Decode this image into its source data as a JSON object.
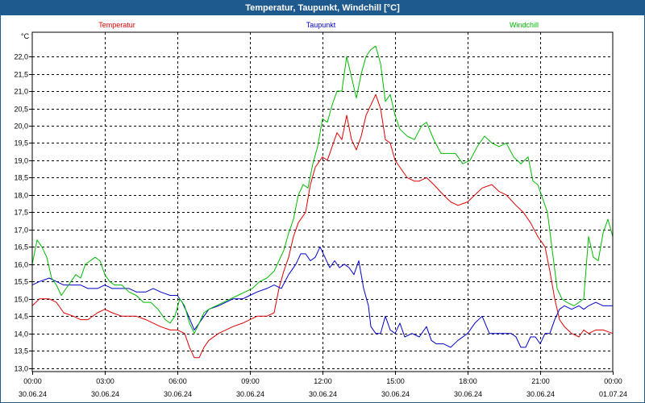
{
  "window": {
    "title": "Temperatur, Taupunkt, Windchill [°C]"
  },
  "chart_data": {
    "type": "line",
    "title": "Temperatur, Taupunkt, Windchill [°C]",
    "ylabel": "°C",
    "xlabel": "",
    "ylim": [
      12.9,
      22.7
    ],
    "yticks": [
      13.0,
      13.5,
      14.0,
      14.5,
      15.0,
      15.5,
      16.0,
      16.5,
      17.0,
      17.5,
      18.0,
      18.5,
      19.0,
      19.5,
      20.0,
      20.5,
      21.0,
      21.5,
      22.0
    ],
    "ytick_labels": [
      "13,0",
      "13,5",
      "14,0",
      "14,5",
      "15,0",
      "15,5",
      "16,0",
      "16,5",
      "17,0",
      "17,5",
      "18,0",
      "18,5",
      "19,0",
      "19,5",
      "20,0",
      "20,5",
      "21,0",
      "21,5",
      "22,0"
    ],
    "xlim": [
      0,
      24
    ],
    "xticks": [
      0,
      3,
      6,
      9,
      12,
      15,
      18,
      21,
      24
    ],
    "xtick_time_labels": [
      "00:00",
      "03:00",
      "06:00",
      "09:00",
      "12:00",
      "15:00",
      "18:00",
      "21:00",
      "00:00"
    ],
    "xtick_date_labels": [
      "30.06.24",
      "30.06.24",
      "30.06.24",
      "30.06.24",
      "30.06.24",
      "30.06.24",
      "30.06.24",
      "30.06.24",
      "01.07.24"
    ],
    "grid": true,
    "colors": {
      "Temperatur": "#e00000",
      "Taupunkt": "#0000cc",
      "Windchill": "#00bb00"
    },
    "series": [
      {
        "name": "Temperatur",
        "points": [
          [
            0,
            14.8
          ],
          [
            0.3,
            15.0
          ],
          [
            0.7,
            15.0
          ],
          [
            1.0,
            14.9
          ],
          [
            1.3,
            14.6
          ],
          [
            1.7,
            14.5
          ],
          [
            2.0,
            14.4
          ],
          [
            2.3,
            14.4
          ],
          [
            2.7,
            14.6
          ],
          [
            3.0,
            14.7
          ],
          [
            3.3,
            14.6
          ],
          [
            3.7,
            14.5
          ],
          [
            4.0,
            14.5
          ],
          [
            4.3,
            14.5
          ],
          [
            4.7,
            14.4
          ],
          [
            5.0,
            14.3
          ],
          [
            5.3,
            14.2
          ],
          [
            5.7,
            14.1
          ],
          [
            6.0,
            14.1
          ],
          [
            6.3,
            14.0
          ],
          [
            6.5,
            13.6
          ],
          [
            6.7,
            13.3
          ],
          [
            6.9,
            13.3
          ],
          [
            7.1,
            13.6
          ],
          [
            7.3,
            13.8
          ],
          [
            7.7,
            14.0
          ],
          [
            8.0,
            14.1
          ],
          [
            8.3,
            14.2
          ],
          [
            8.7,
            14.3
          ],
          [
            9.0,
            14.4
          ],
          [
            9.3,
            14.5
          ],
          [
            9.7,
            14.5
          ],
          [
            10.0,
            14.6
          ],
          [
            10.2,
            15.3
          ],
          [
            10.4,
            15.8
          ],
          [
            10.6,
            16.2
          ],
          [
            10.8,
            16.8
          ],
          [
            11.0,
            17.2
          ],
          [
            11.3,
            17.5
          ],
          [
            11.5,
            18.3
          ],
          [
            11.7,
            18.8
          ],
          [
            12.0,
            19.1
          ],
          [
            12.2,
            19.0
          ],
          [
            12.4,
            19.4
          ],
          [
            12.6,
            19.8
          ],
          [
            12.8,
            19.6
          ],
          [
            13.0,
            20.3
          ],
          [
            13.2,
            19.6
          ],
          [
            13.4,
            19.3
          ],
          [
            13.6,
            19.7
          ],
          [
            13.8,
            20.3
          ],
          [
            14.0,
            20.6
          ],
          [
            14.2,
            20.9
          ],
          [
            14.4,
            20.5
          ],
          [
            14.6,
            19.6
          ],
          [
            14.8,
            19.5
          ],
          [
            15.0,
            19.0
          ],
          [
            15.2,
            18.8
          ],
          [
            15.5,
            18.5
          ],
          [
            15.8,
            18.4
          ],
          [
            16.0,
            18.4
          ],
          [
            16.3,
            18.5
          ],
          [
            16.6,
            18.3
          ],
          [
            17.0,
            18.0
          ],
          [
            17.3,
            17.8
          ],
          [
            17.6,
            17.7
          ],
          [
            18.0,
            17.8
          ],
          [
            18.3,
            18.0
          ],
          [
            18.6,
            18.2
          ],
          [
            19.0,
            18.3
          ],
          [
            19.3,
            18.1
          ],
          [
            19.6,
            18.0
          ],
          [
            20.0,
            17.7
          ],
          [
            20.3,
            17.5
          ],
          [
            20.6,
            17.2
          ],
          [
            20.9,
            16.8
          ],
          [
            21.2,
            16.5
          ],
          [
            21.4,
            15.8
          ],
          [
            21.6,
            15.0
          ],
          [
            21.8,
            14.4
          ],
          [
            22.0,
            14.2
          ],
          [
            22.3,
            14.0
          ],
          [
            22.6,
            13.9
          ],
          [
            22.8,
            14.1
          ],
          [
            23.0,
            14.0
          ],
          [
            23.3,
            14.1
          ],
          [
            23.6,
            14.1
          ],
          [
            24.0,
            14.0
          ]
        ]
      },
      {
        "name": "Taupunkt",
        "points": [
          [
            0,
            15.4
          ],
          [
            0.3,
            15.5
          ],
          [
            0.7,
            15.6
          ],
          [
            1.0,
            15.5
          ],
          [
            1.3,
            15.4
          ],
          [
            1.7,
            15.4
          ],
          [
            2.0,
            15.4
          ],
          [
            2.3,
            15.3
          ],
          [
            2.7,
            15.3
          ],
          [
            3.0,
            15.4
          ],
          [
            3.3,
            15.3
          ],
          [
            3.7,
            15.3
          ],
          [
            4.0,
            15.3
          ],
          [
            4.3,
            15.2
          ],
          [
            4.7,
            15.2
          ],
          [
            5.0,
            15.3
          ],
          [
            5.3,
            15.2
          ],
          [
            5.7,
            15.1
          ],
          [
            6.0,
            15.1
          ],
          [
            6.2,
            14.9
          ],
          [
            6.4,
            14.6
          ],
          [
            6.7,
            14.1
          ],
          [
            6.9,
            14.3
          ],
          [
            7.1,
            14.5
          ],
          [
            7.3,
            14.7
          ],
          [
            7.7,
            14.8
          ],
          [
            8.0,
            14.9
          ],
          [
            8.3,
            15.0
          ],
          [
            8.7,
            15.0
          ],
          [
            9.0,
            15.1
          ],
          [
            9.3,
            15.2
          ],
          [
            9.7,
            15.3
          ],
          [
            10.0,
            15.4
          ],
          [
            10.3,
            15.3
          ],
          [
            10.6,
            15.7
          ],
          [
            10.9,
            16.0
          ],
          [
            11.1,
            16.3
          ],
          [
            11.3,
            16.3
          ],
          [
            11.5,
            16.1
          ],
          [
            11.7,
            16.2
          ],
          [
            11.9,
            16.5
          ],
          [
            12.1,
            16.2
          ],
          [
            12.3,
            15.9
          ],
          [
            12.5,
            16.1
          ],
          [
            12.7,
            15.9
          ],
          [
            12.9,
            16.0
          ],
          [
            13.1,
            15.9
          ],
          [
            13.3,
            15.7
          ],
          [
            13.5,
            16.1
          ],
          [
            13.7,
            15.3
          ],
          [
            13.9,
            14.8
          ],
          [
            14.0,
            14.2
          ],
          [
            14.2,
            14.0
          ],
          [
            14.4,
            14.0
          ],
          [
            14.6,
            14.5
          ],
          [
            14.8,
            14.1
          ],
          [
            15.0,
            14.0
          ],
          [
            15.2,
            14.3
          ],
          [
            15.4,
            13.9
          ],
          [
            15.7,
            14.0
          ],
          [
            16.0,
            13.9
          ],
          [
            16.3,
            14.2
          ],
          [
            16.5,
            13.8
          ],
          [
            16.7,
            13.7
          ],
          [
            17.0,
            13.7
          ],
          [
            17.3,
            13.6
          ],
          [
            17.6,
            13.8
          ],
          [
            18.0,
            14.0
          ],
          [
            18.3,
            14.3
          ],
          [
            18.6,
            14.5
          ],
          [
            18.9,
            14.0
          ],
          [
            19.2,
            14.0
          ],
          [
            19.5,
            14.0
          ],
          [
            19.8,
            14.0
          ],
          [
            20.0,
            13.9
          ],
          [
            20.2,
            13.6
          ],
          [
            20.4,
            13.6
          ],
          [
            20.6,
            13.9
          ],
          [
            20.8,
            13.9
          ],
          [
            21.0,
            13.7
          ],
          [
            21.2,
            14.0
          ],
          [
            21.4,
            14.0
          ],
          [
            21.6,
            14.4
          ],
          [
            21.8,
            14.7
          ],
          [
            22.0,
            14.8
          ],
          [
            22.3,
            14.7
          ],
          [
            22.6,
            14.8
          ],
          [
            22.8,
            14.7
          ],
          [
            23.0,
            14.8
          ],
          [
            23.3,
            14.9
          ],
          [
            23.6,
            14.8
          ],
          [
            24.0,
            14.8
          ]
        ]
      },
      {
        "name": "Windchill",
        "points": [
          [
            0,
            16.0
          ],
          [
            0.2,
            16.7
          ],
          [
            0.4,
            16.5
          ],
          [
            0.6,
            16.2
          ],
          [
            0.8,
            15.6
          ],
          [
            1.0,
            15.4
          ],
          [
            1.2,
            15.1
          ],
          [
            1.4,
            15.3
          ],
          [
            1.6,
            15.5
          ],
          [
            1.8,
            15.7
          ],
          [
            2.0,
            15.6
          ],
          [
            2.2,
            16.0
          ],
          [
            2.4,
            16.1
          ],
          [
            2.6,
            16.2
          ],
          [
            2.8,
            16.1
          ],
          [
            3.0,
            15.7
          ],
          [
            3.2,
            15.5
          ],
          [
            3.4,
            15.4
          ],
          [
            3.7,
            15.4
          ],
          [
            4.0,
            15.2
          ],
          [
            4.3,
            15.1
          ],
          [
            4.6,
            14.9
          ],
          [
            4.9,
            14.9
          ],
          [
            5.2,
            14.7
          ],
          [
            5.5,
            14.4
          ],
          [
            5.7,
            14.3
          ],
          [
            5.9,
            14.5
          ],
          [
            6.1,
            15.0
          ],
          [
            6.3,
            14.8
          ],
          [
            6.5,
            14.3
          ],
          [
            6.7,
            14.0
          ],
          [
            6.9,
            14.3
          ],
          [
            7.1,
            14.6
          ],
          [
            7.3,
            14.7
          ],
          [
            7.6,
            14.8
          ],
          [
            7.9,
            14.9
          ],
          [
            8.2,
            15.0
          ],
          [
            8.5,
            15.1
          ],
          [
            8.8,
            15.2
          ],
          [
            9.1,
            15.3
          ],
          [
            9.4,
            15.5
          ],
          [
            9.7,
            15.6
          ],
          [
            10.0,
            15.8
          ],
          [
            10.2,
            16.1
          ],
          [
            10.4,
            16.4
          ],
          [
            10.6,
            16.9
          ],
          [
            10.8,
            17.3
          ],
          [
            11.0,
            18.0
          ],
          [
            11.2,
            18.3
          ],
          [
            11.4,
            18.2
          ],
          [
            11.6,
            18.9
          ],
          [
            11.8,
            19.4
          ],
          [
            12.0,
            20.2
          ],
          [
            12.2,
            20.1
          ],
          [
            12.4,
            20.6
          ],
          [
            12.6,
            21.0
          ],
          [
            12.8,
            21.0
          ],
          [
            13.0,
            22.0
          ],
          [
            13.2,
            21.4
          ],
          [
            13.4,
            20.8
          ],
          [
            13.6,
            21.5
          ],
          [
            13.8,
            22.0
          ],
          [
            14.0,
            22.2
          ],
          [
            14.2,
            22.3
          ],
          [
            14.4,
            21.8
          ],
          [
            14.6,
            20.7
          ],
          [
            14.8,
            20.9
          ],
          [
            15.0,
            20.3
          ],
          [
            15.2,
            19.9
          ],
          [
            15.5,
            19.7
          ],
          [
            15.8,
            19.6
          ],
          [
            16.1,
            20.0
          ],
          [
            16.3,
            20.1
          ],
          [
            16.6,
            19.6
          ],
          [
            16.9,
            19.2
          ],
          [
            17.2,
            19.2
          ],
          [
            17.5,
            19.2
          ],
          [
            17.8,
            18.9
          ],
          [
            18.1,
            19.0
          ],
          [
            18.4,
            19.4
          ],
          [
            18.7,
            19.7
          ],
          [
            19.0,
            19.5
          ],
          [
            19.3,
            19.4
          ],
          [
            19.6,
            19.5
          ],
          [
            19.9,
            19.1
          ],
          [
            20.2,
            18.9
          ],
          [
            20.5,
            19.1
          ],
          [
            20.7,
            18.4
          ],
          [
            20.9,
            18.3
          ],
          [
            21.1,
            17.9
          ],
          [
            21.3,
            17.5
          ],
          [
            21.5,
            16.4
          ],
          [
            21.7,
            15.3
          ],
          [
            21.9,
            15.0
          ],
          [
            22.1,
            14.9
          ],
          [
            22.4,
            14.8
          ],
          [
            22.6,
            14.9
          ],
          [
            22.8,
            15.0
          ],
          [
            23.0,
            16.8
          ],
          [
            23.2,
            16.2
          ],
          [
            23.4,
            16.1
          ],
          [
            23.6,
            16.9
          ],
          [
            23.8,
            17.3
          ],
          [
            24.0,
            16.8
          ]
        ]
      }
    ]
  }
}
